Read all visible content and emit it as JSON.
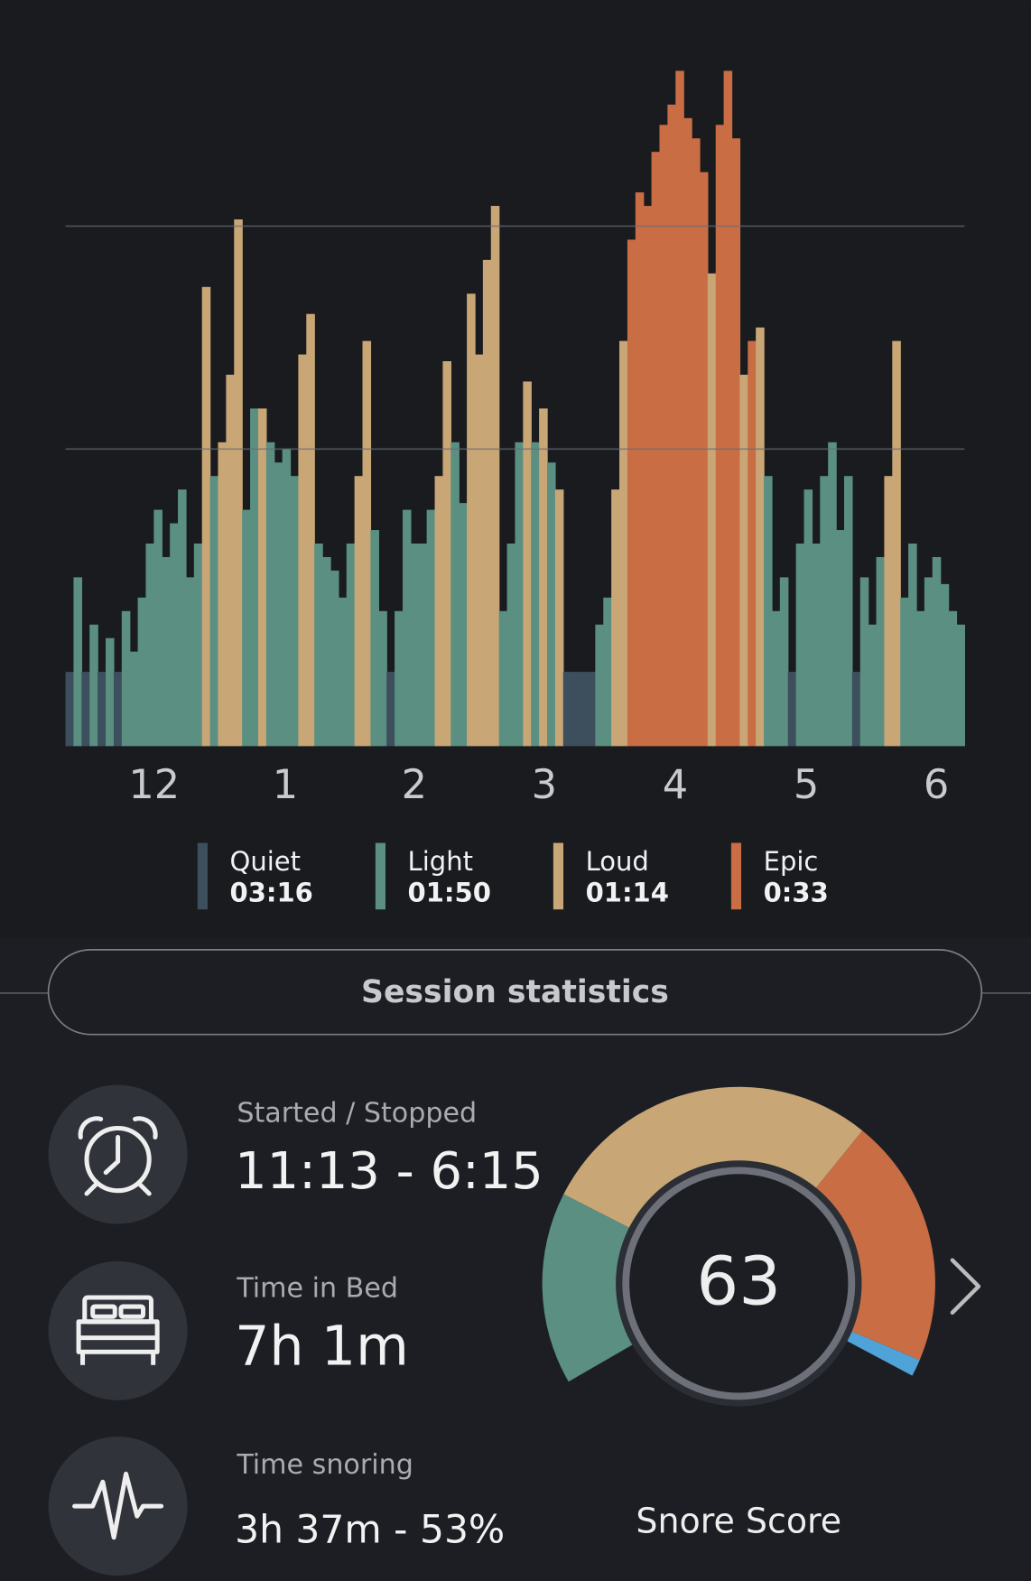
{
  "chart": {
    "x_labels": [
      "12",
      "1",
      "2",
      "3",
      "4",
      "5",
      "6"
    ],
    "gridlines": [
      44,
      77
    ],
    "values": [
      11,
      25,
      11,
      18,
      11,
      16,
      11,
      20,
      14,
      22,
      30,
      35,
      28,
      33,
      38,
      25,
      30,
      68,
      40,
      45,
      55,
      78,
      35,
      50,
      50,
      45,
      42,
      44,
      40,
      58,
      64,
      30,
      28,
      26,
      22,
      30,
      40,
      60,
      32,
      20,
      11,
      20,
      35,
      30,
      30,
      35,
      40,
      57,
      45,
      36,
      67,
      58,
      72,
      80,
      20,
      30,
      45,
      54,
      45,
      50,
      42,
      38,
      11,
      11,
      11,
      11,
      18,
      22,
      38,
      60,
      75,
      82,
      80,
      88,
      92,
      95,
      100,
      93,
      90,
      85,
      70,
      92,
      100,
      90,
      55,
      60,
      62,
      40,
      20,
      25,
      11,
      30,
      38,
      30,
      40,
      45,
      32,
      40,
      11,
      25,
      18,
      28,
      40,
      60,
      22,
      30,
      20,
      25,
      28,
      24,
      20,
      18
    ],
    "classes": [
      0,
      1,
      0,
      1,
      0,
      1,
      0,
      1,
      1,
      1,
      1,
      1,
      1,
      1,
      1,
      1,
      1,
      2,
      1,
      2,
      2,
      2,
      1,
      1,
      2,
      1,
      1,
      1,
      1,
      2,
      2,
      1,
      1,
      1,
      1,
      1,
      2,
      2,
      1,
      1,
      0,
      1,
      1,
      1,
      1,
      1,
      2,
      2,
      1,
      1,
      2,
      2,
      2,
      2,
      1,
      1,
      1,
      2,
      1,
      2,
      1,
      2,
      0,
      0,
      0,
      0,
      1,
      1,
      2,
      2,
      3,
      3,
      3,
      3,
      3,
      3,
      3,
      3,
      3,
      3,
      2,
      3,
      3,
      3,
      2,
      3,
      2,
      1,
      1,
      1,
      0,
      1,
      1,
      1,
      1,
      1,
      1,
      1,
      0,
      1,
      1,
      1,
      2,
      2,
      1,
      1,
      1,
      1,
      1,
      1,
      1,
      1
    ],
    "legend": [
      {
        "name": "Quiet",
        "duration": "03:16",
        "color": "#3d4f5c"
      },
      {
        "name": "Light",
        "duration": "01:50",
        "color": "#5a8f82"
      },
      {
        "name": "Loud",
        "duration": "01:14",
        "color": "#c9a676"
      },
      {
        "name": "Epic",
        "duration": "0:33",
        "color": "#c96d45"
      }
    ]
  },
  "section_title": "Session statistics",
  "stats": [
    {
      "label": "Started / Stopped",
      "value": "11:13 - 6:15"
    },
    {
      "label": "Time in Bed",
      "value": "7h 1m"
    },
    {
      "label": "Time snoring",
      "value": "3h 37m - 53%"
    }
  ],
  "snore_score": {
    "value": 63,
    "label": "Snore Score"
  }
}
